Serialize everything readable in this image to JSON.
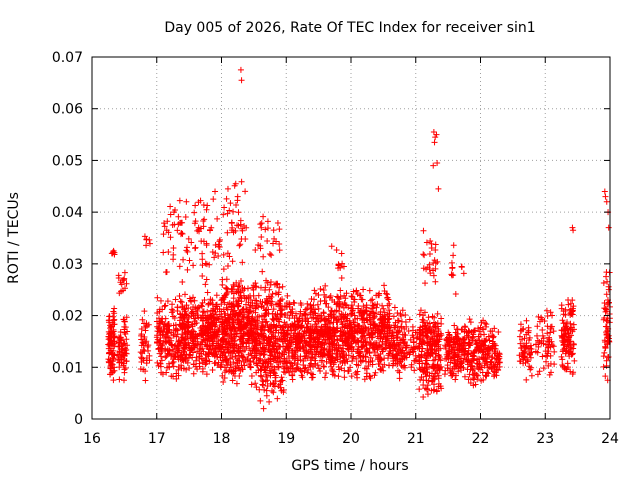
{
  "chart_data": {
    "type": "scatter",
    "title": "Day 005 of 2026, Rate Of TEC Index for receiver sin1",
    "xlabel": "GPS time / hours",
    "ylabel": "ROTI / TECUs",
    "xlim": [
      16,
      24
    ],
    "ylim": [
      0,
      0.07
    ],
    "x_ticks": [
      16,
      17,
      18,
      19,
      20,
      21,
      22,
      23,
      24
    ],
    "x_tick_labels": [
      "16",
      "17",
      "18",
      "19",
      "20",
      "21",
      "22",
      "23",
      "24"
    ],
    "y_ticks": [
      0,
      0.01,
      0.02,
      0.03,
      0.04,
      0.05,
      0.06,
      0.07
    ],
    "y_tick_labels": [
      "0",
      "0.01",
      "0.02",
      "0.03",
      "0.04",
      "0.05",
      "0.06",
      "0.07"
    ],
    "grid": true,
    "marker": "+",
    "marker_color": "#ff0000",
    "clusters": [
      {
        "x": [
          16.25,
          16.35
        ],
        "y": [
          0.007,
          0.022
        ],
        "n": 90
      },
      {
        "x": [
          16.3,
          16.35
        ],
        "y": [
          0.031,
          0.034
        ],
        "n": 6
      },
      {
        "x": [
          16.4,
          16.55
        ],
        "y": [
          0.007,
          0.021
        ],
        "n": 70
      },
      {
        "x": [
          16.4,
          16.55
        ],
        "y": [
          0.024,
          0.029
        ],
        "n": 14
      },
      {
        "x": [
          16.75,
          16.9
        ],
        "y": [
          0.007,
          0.021
        ],
        "n": 40
      },
      {
        "x": [
          16.8,
          16.9
        ],
        "y": [
          0.032,
          0.037
        ],
        "n": 6
      },
      {
        "x": [
          17.0,
          17.35
        ],
        "y": [
          0.007,
          0.024
        ],
        "n": 160
      },
      {
        "x": [
          17.1,
          17.5
        ],
        "y": [
          0.025,
          0.044
        ],
        "n": 40
      },
      {
        "x": [
          17.35,
          18.0
        ],
        "y": [
          0.008,
          0.025
        ],
        "n": 420
      },
      {
        "x": [
          17.5,
          18.1
        ],
        "y": [
          0.025,
          0.045
        ],
        "n": 60
      },
      {
        "x": [
          18.0,
          18.5
        ],
        "y": [
          0.006,
          0.028
        ],
        "n": 420
      },
      {
        "x": [
          18.1,
          18.4
        ],
        "y": [
          0.028,
          0.047
        ],
        "n": 30
      },
      {
        "x": [
          18.5,
          19.0
        ],
        "y": [
          0.003,
          0.028
        ],
        "n": 380
      },
      {
        "x": [
          18.5,
          18.9
        ],
        "y": [
          0.028,
          0.041
        ],
        "n": 25
      },
      {
        "x": [
          19.0,
          19.4
        ],
        "y": [
          0.007,
          0.024
        ],
        "n": 260
      },
      {
        "x": [
          19.4,
          20.0
        ],
        "y": [
          0.007,
          0.026
        ],
        "n": 400
      },
      {
        "x": [
          19.7,
          19.9
        ],
        "y": [
          0.026,
          0.035
        ],
        "n": 12
      },
      {
        "x": [
          20.0,
          20.6
        ],
        "y": [
          0.007,
          0.026
        ],
        "n": 380
      },
      {
        "x": [
          20.6,
          20.85
        ],
        "y": [
          0.007,
          0.022
        ],
        "n": 110
      },
      {
        "x": [
          20.85,
          21.05
        ],
        "y": [
          0.008,
          0.02
        ],
        "n": 40
      },
      {
        "x": [
          21.05,
          21.4
        ],
        "y": [
          0.004,
          0.022
        ],
        "n": 220
      },
      {
        "x": [
          21.1,
          21.35
        ],
        "y": [
          0.023,
          0.038
        ],
        "n": 25
      },
      {
        "x": [
          21.45,
          21.75
        ],
        "y": [
          0.007,
          0.02
        ],
        "n": 140
      },
      {
        "x": [
          21.55,
          21.75
        ],
        "y": [
          0.024,
          0.035
        ],
        "n": 12
      },
      {
        "x": [
          21.75,
          22.1
        ],
        "y": [
          0.006,
          0.02
        ],
        "n": 160
      },
      {
        "x": [
          22.1,
          22.3
        ],
        "y": [
          0.006,
          0.018
        ],
        "n": 80
      },
      {
        "x": [
          22.6,
          22.8
        ],
        "y": [
          0.007,
          0.02
        ],
        "n": 60
      },
      {
        "x": [
          22.85,
          23.15
        ],
        "y": [
          0.008,
          0.023
        ],
        "n": 60
      },
      {
        "x": [
          23.25,
          23.45
        ],
        "y": [
          0.007,
          0.025
        ],
        "n": 110
      },
      {
        "x": [
          23.9,
          24.0
        ],
        "y": [
          0.007,
          0.03
        ],
        "n": 60
      }
    ],
    "outliers": [
      {
        "x": 18.3,
        "y": 0.0675
      },
      {
        "x": 18.31,
        "y": 0.0655
      },
      {
        "x": 18.22,
        "y": 0.0455
      },
      {
        "x": 18.1,
        "y": 0.0445
      },
      {
        "x": 17.9,
        "y": 0.044
      },
      {
        "x": 18.25,
        "y": 0.043
      },
      {
        "x": 21.28,
        "y": 0.0555
      },
      {
        "x": 21.3,
        "y": 0.0545
      },
      {
        "x": 21.32,
        "y": 0.055
      },
      {
        "x": 21.29,
        "y": 0.0535
      },
      {
        "x": 21.33,
        "y": 0.0495
      },
      {
        "x": 21.27,
        "y": 0.049
      },
      {
        "x": 21.35,
        "y": 0.0445
      },
      {
        "x": 23.42,
        "y": 0.037
      },
      {
        "x": 23.43,
        "y": 0.0365
      },
      {
        "x": 23.92,
        "y": 0.044
      },
      {
        "x": 23.93,
        "y": 0.043
      },
      {
        "x": 23.95,
        "y": 0.042
      },
      {
        "x": 23.97,
        "y": 0.04
      },
      {
        "x": 23.98,
        "y": 0.037
      },
      {
        "x": 18.65,
        "y": 0.002
      },
      {
        "x": 18.6,
        "y": 0.0035
      },
      {
        "x": 18.7,
        "y": 0.0045
      }
    ]
  }
}
